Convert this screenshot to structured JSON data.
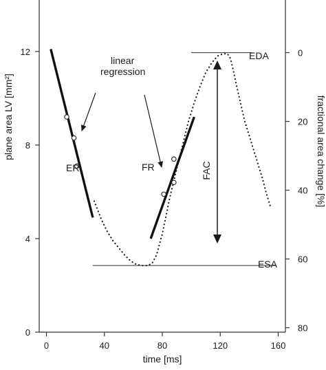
{
  "chart_data": {
    "type": "line",
    "title": "",
    "xlabel": "time [ms]",
    "ylabel": "plane area LV [mm²]",
    "y2label": "fractional area change [%]",
    "xlim": [
      -5,
      165
    ],
    "ylim": [
      0,
      14.2
    ],
    "y2lim": [
      0,
      100
    ],
    "x_ticks": [
      "0",
      "40",
      "80",
      "120",
      "160"
    ],
    "x_tick_values": [
      0,
      40,
      80,
      120,
      160
    ],
    "y_ticks": [
      "0",
      "4",
      "8",
      "12"
    ],
    "y_tick_values": [
      0,
      4,
      8,
      12
    ],
    "y2_ticks": [
      "0",
      "20",
      "40",
      "60",
      "80"
    ],
    "y2_tick_values": [
      0,
      20,
      40,
      60,
      80
    ],
    "y2_at_top": 11.95,
    "y2_per_unit": 0.147,
    "grid": false,
    "series": [
      {
        "style": "dotted",
        "x": [
          33,
          38,
          42,
          46,
          50,
          54,
          58,
          62,
          66,
          70,
          73,
          76,
          80,
          85,
          90,
          94,
          98,
          102,
          106,
          110,
          114,
          118,
          122,
          125,
          127,
          129,
          131,
          134,
          137,
          140,
          143,
          146,
          149,
          152,
          155
        ],
        "y": [
          5.6,
          4.8,
          4.3,
          3.9,
          3.6,
          3.3,
          3.05,
          2.9,
          2.85,
          2.85,
          2.95,
          3.3,
          4.2,
          5.7,
          7.0,
          8.0,
          9.0,
          9.8,
          10.5,
          11.1,
          11.5,
          11.8,
          11.9,
          11.9,
          11.7,
          11.2,
          10.6,
          9.8,
          9.0,
          8.4,
          7.8,
          7.2,
          6.6,
          5.9,
          5.3
        ]
      }
    ],
    "regression_lines": [
      {
        "label": "ER",
        "x": [
          3,
          32
        ],
        "y": [
          12.1,
          4.9
        ]
      },
      {
        "label": "FR",
        "x": [
          72,
          102
        ],
        "y": [
          4.0,
          9.2
        ]
      }
    ],
    "points": [
      {
        "x": 14,
        "y": 9.2
      },
      {
        "x": 19,
        "y": 8.3
      },
      {
        "x": 21,
        "y": 7.1
      },
      {
        "x": 81,
        "y": 5.9
      },
      {
        "x": 88,
        "y": 6.4
      },
      {
        "x": 88,
        "y": 7.4
      }
    ],
    "reference_lines": [
      {
        "label": "EDA",
        "y": 11.95,
        "x": [
          100,
          142
        ]
      },
      {
        "label": "ESA",
        "y": 2.85,
        "x": [
          32,
          159
        ]
      }
    ],
    "annotations": [
      {
        "text": "linear"
      },
      {
        "text": "regression"
      },
      {
        "text": "ER"
      },
      {
        "text": "FR"
      },
      {
        "text": "FAC"
      },
      {
        "text": "EDA"
      },
      {
        "text": "ESA"
      }
    ]
  }
}
